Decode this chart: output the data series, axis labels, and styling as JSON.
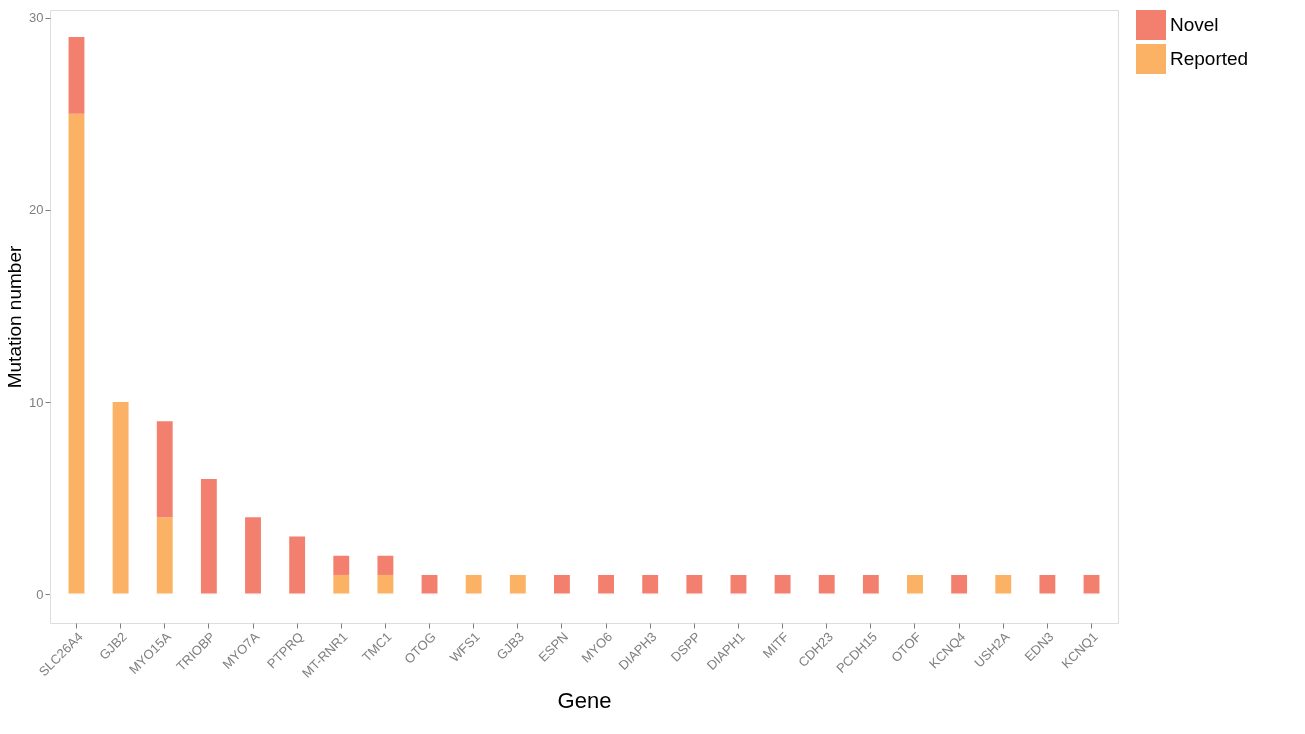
{
  "chart_data": {
    "type": "bar",
    "stacked": true,
    "xlabel": "Gene",
    "ylabel": "Mutation number",
    "categories": [
      "SLC26A4",
      "GJB2",
      "MYO15A",
      "TRIOBP",
      "MYO7A",
      "PTPRQ",
      "MT-RNR1",
      "TMC1",
      "OTOG",
      "WFS1",
      "GJB3",
      "ESPN",
      "MYO6",
      "DIAPH3",
      "DSPP",
      "DIAPH1",
      "MITF",
      "CDH23",
      "PCDH15",
      "OTOF",
      "KCNQ4",
      "USH2A",
      "EDN3",
      "KCNQ1"
    ],
    "series": [
      {
        "name": "Reported",
        "color": "#fbb264",
        "values": [
          25,
          10,
          4,
          0,
          0,
          0,
          1,
          1,
          0,
          1,
          1,
          0,
          0,
          0,
          0,
          0,
          0,
          0,
          0,
          1,
          0,
          1,
          0,
          0
        ]
      },
      {
        "name": "Novel",
        "color": "#f3806f",
        "values": [
          4,
          0,
          5,
          6,
          4,
          3,
          1,
          1,
          1,
          0,
          0,
          1,
          1,
          1,
          1,
          1,
          1,
          1,
          1,
          0,
          1,
          0,
          1,
          1
        ]
      }
    ],
    "ylim": [
      -1.5,
      30.4
    ],
    "yticks": [
      0,
      10,
      20,
      30
    ],
    "grid": false,
    "legend": "top right",
    "ref_lines": [
      {
        "axis": "y",
        "value": 0,
        "color": "#ffffff"
      }
    ]
  }
}
